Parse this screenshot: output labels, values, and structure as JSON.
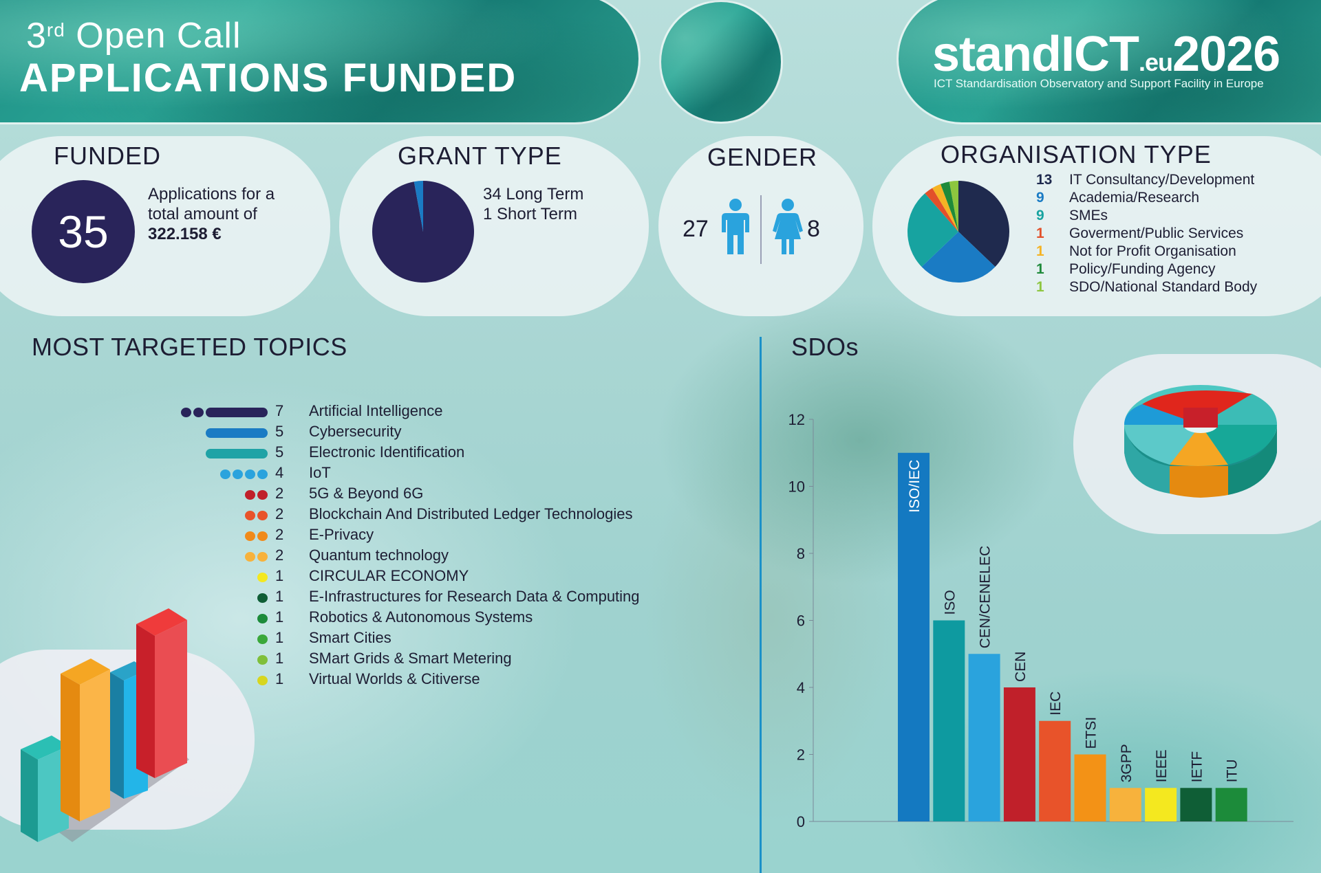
{
  "header": {
    "call_number": "3",
    "call_suffix": "rd",
    "call_label": "Open Call",
    "title": "APPLICATIONS FUNDED"
  },
  "logo": {
    "name_main": "standICT",
    "name_eu": ".eu",
    "name_year": "2026",
    "tagline": "ICT Standardisation Observatory and Support Facility in Europe"
  },
  "funded": {
    "heading": "FUNDED",
    "count": "35",
    "text_line1": "Applications for a",
    "text_line2": "total amount of",
    "amount": "322.158 €"
  },
  "grant_type": {
    "heading": "GRANT TYPE",
    "long_label": "34 Long Term",
    "short_label": "1 Short Term",
    "long_value": 34,
    "short_value": 1,
    "colors": {
      "long": "#29245a",
      "short": "#1a7bc4"
    }
  },
  "gender": {
    "heading": "GENDER",
    "male": "27",
    "female": "8",
    "icon_color": "#2aa3dd"
  },
  "organisation_type": {
    "heading": "ORGANISATION TYPE",
    "items": [
      {
        "count": "13",
        "label": "IT Consultancy/Development",
        "value": 13,
        "color": "#1f2a4e"
      },
      {
        "count": "9",
        "label": "Academia/Research",
        "value": 9,
        "color": "#1a7bc4"
      },
      {
        "count": "9",
        "label": "SMEs",
        "value": 9,
        "color": "#17a3a0"
      },
      {
        "count": "1",
        "label": "Goverment/Public Services",
        "value": 1,
        "color": "#e2502a"
      },
      {
        "count": "1",
        "label": "Not for Profit Organisation",
        "value": 1,
        "color": "#f5b324"
      },
      {
        "count": "1",
        "label": "Policy/Funding Agency",
        "value": 1,
        "color": "#1e8a3a"
      },
      {
        "count": "1",
        "label": "SDO/National Standard Body",
        "value": 1,
        "color": "#8dc63f"
      }
    ]
  },
  "topics": {
    "heading": "MOST TARGETED TOPICS",
    "items": [
      {
        "count": "7",
        "label": "Artificial Intelligence",
        "value": 7,
        "color": "#29245a",
        "marker": "dots-bar"
      },
      {
        "count": "5",
        "label": "Cybersecurity",
        "value": 5,
        "color": "#1a7bc4",
        "marker": "bar"
      },
      {
        "count": "5",
        "label": "Electronic Identification",
        "value": 5,
        "color": "#1fa3a6",
        "marker": "bar"
      },
      {
        "count": "4",
        "label": "IoT",
        "value": 4,
        "color": "#2aa3dd",
        "marker": "dots"
      },
      {
        "count": "2",
        "label": "5G & Beyond 6G",
        "value": 2,
        "color": "#c0202a",
        "marker": "dots"
      },
      {
        "count": "2",
        "label": "Blockchain And Distributed Ledger Technologies",
        "value": 2,
        "color": "#e8532a",
        "marker": "dots"
      },
      {
        "count": "2",
        "label": "E-Privacy",
        "value": 2,
        "color": "#f08a1a",
        "marker": "dots"
      },
      {
        "count": "2",
        "label": "Quantum technology",
        "value": 2,
        "color": "#f7b23c",
        "marker": "dots"
      },
      {
        "count": "1",
        "label": "CIRCULAR ECONOMY",
        "value": 1,
        "color": "#f4e81f",
        "marker": "dots"
      },
      {
        "count": "1",
        "label": "E-Infrastructures for Research Data & Computing",
        "value": 1,
        "color": "#0f5e36",
        "marker": "dots"
      },
      {
        "count": "1",
        "label": "Robotics & Autonomous Systems",
        "value": 1,
        "color": "#1c8b3a",
        "marker": "dots"
      },
      {
        "count": "1",
        "label": "Smart Cities",
        "value": 1,
        "color": "#3aa83a",
        "marker": "dots"
      },
      {
        "count": "1",
        "label": "SMart Grids & Smart Metering",
        "value": 1,
        "color": "#7fbf3a",
        "marker": "dots"
      },
      {
        "count": "1",
        "label": "Virtual Worlds & Citiverse",
        "value": 1,
        "color": "#d7d61f",
        "marker": "dots"
      }
    ]
  },
  "chart_data": {
    "type": "bar",
    "title": "SDOs",
    "xlabel": "",
    "ylabel": "",
    "ylim": [
      0,
      12
    ],
    "yticks": [
      "0",
      "2",
      "4",
      "6",
      "8",
      "10",
      "12"
    ],
    "categories": [
      "ISO/IEC",
      "ISO",
      "CEN/CENELEC",
      "CEN",
      "IEC",
      "ETSI",
      "3GPP",
      "IEEE",
      "IETF",
      "ITU"
    ],
    "values": [
      11,
      6,
      5,
      4,
      3,
      2,
      1,
      1,
      1,
      1
    ],
    "colors": [
      "#1479c1",
      "#0e9aa0",
      "#2aa3dd",
      "#c0202a",
      "#e8532a",
      "#f39216",
      "#f7b23c",
      "#f4e81f",
      "#0f5e36",
      "#1c8b3a"
    ],
    "grid": false
  }
}
